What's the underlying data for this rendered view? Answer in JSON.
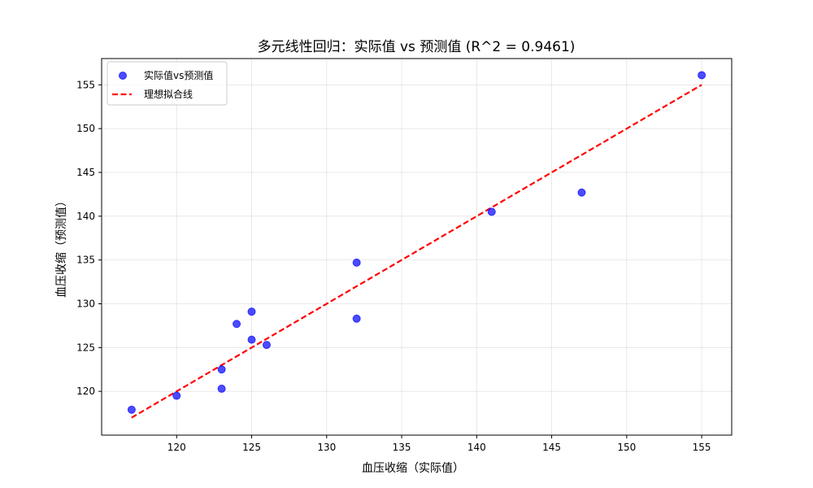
{
  "chart_data": {
    "type": "scatter",
    "title": "多元线性回归：实际值 vs 预测值 (R^2 = 0.9461)",
    "xlabel": "血压收缩（实际值）",
    "ylabel": "血压收缩（预测值）",
    "xlim": [
      115,
      157
    ],
    "ylim": [
      115,
      158
    ],
    "xticks": [
      120,
      125,
      130,
      135,
      140,
      145,
      150,
      155
    ],
    "yticks": [
      120,
      125,
      130,
      135,
      140,
      145,
      150,
      155
    ],
    "grid": true,
    "legend_position": "top-left",
    "series": [
      {
        "name": "实际值vs预测值",
        "kind": "scatter",
        "color": "#0000ff",
        "points": [
          [
            117,
            117.9
          ],
          [
            120,
            119.5
          ],
          [
            123,
            122.5
          ],
          [
            123,
            120.3
          ],
          [
            124,
            127.7
          ],
          [
            125,
            129.1
          ],
          [
            125,
            125.9
          ],
          [
            126,
            125.3
          ],
          [
            132,
            134.7
          ],
          [
            132,
            128.3
          ],
          [
            141,
            140.5
          ],
          [
            147,
            142.7
          ],
          [
            155,
            156.1
          ]
        ]
      },
      {
        "name": "理想拟合线",
        "kind": "line",
        "style": "dashed",
        "color": "#ff0000",
        "points": [
          [
            117,
            117
          ],
          [
            155,
            155
          ]
        ]
      }
    ]
  }
}
